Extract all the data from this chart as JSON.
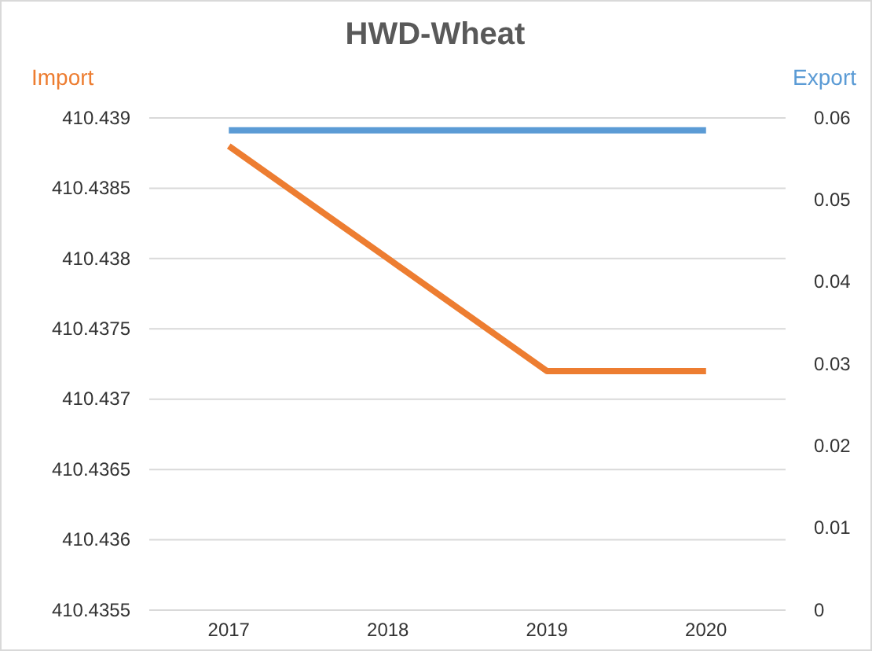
{
  "chart_data": {
    "type": "line",
    "title": "HWD-Wheat",
    "categories": [
      "2017",
      "2018",
      "2019",
      "2020"
    ],
    "series": [
      {
        "name": "Import",
        "color": "#ed7d31",
        "values": [
          410.4388,
          410.438,
          410.4372,
          410.4372
        ]
      },
      {
        "name": "Export",
        "color": "#5b9bd5",
        "axis": "y2",
        "values": [
          0.0585,
          0.0585,
          0.0585,
          0.0585
        ]
      }
    ],
    "ylim": [
      410.4355,
      410.439
    ],
    "yticks": [
      410.4355,
      410.436,
      410.4365,
      410.437,
      410.4375,
      410.438,
      410.4385,
      410.439
    ],
    "y2lim": [
      0,
      0.06
    ],
    "y2ticks": [
      0,
      0.01,
      0.02,
      0.03,
      0.04,
      0.05,
      0.06
    ],
    "grid": "y",
    "legend": false,
    "marker": "none",
    "line_style": "solid"
  }
}
